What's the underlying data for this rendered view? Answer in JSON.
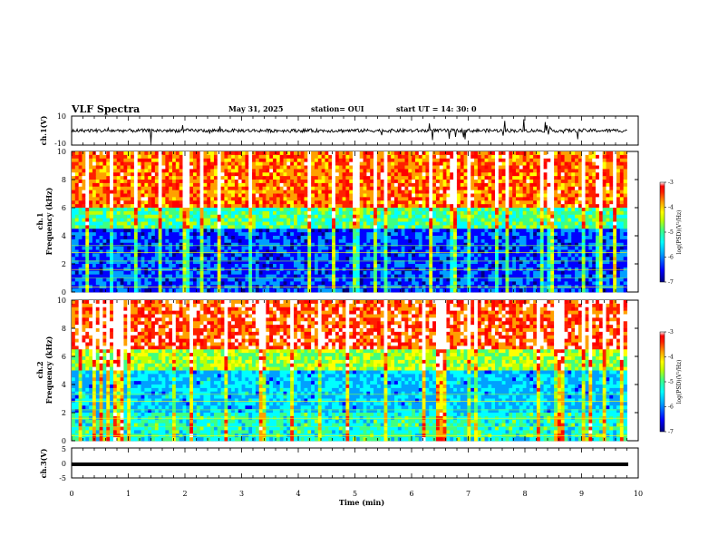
{
  "header": {
    "title": "VLF Spectra",
    "date": "May 31, 2025",
    "station": "station= OUI",
    "start": "start  UT  =   14: 30: 0"
  },
  "colorbar": {
    "label": "log(PSD)(V²/Hz)",
    "ticks": [
      "-3",
      "-4",
      "-5",
      "-6",
      "-7"
    ],
    "values": [
      -3,
      -4,
      -5,
      -6,
      -7
    ],
    "colormap": [
      "#000080",
      "#0000ff",
      "#00a0ff",
      "#00ffff",
      "#40ff80",
      "#c0ff00",
      "#ffff00",
      "#ffa000",
      "#ff2000",
      "#ff0000",
      "#ffffff"
    ]
  },
  "chart_data": [
    {
      "type": "line",
      "panel": "ch1-waveform",
      "ylabel": "ch.1(V)",
      "ylim": [
        -10,
        10
      ],
      "ytick_labels": [
        "10",
        "-10"
      ],
      "xlim": [
        0,
        10
      ],
      "baseline": 0
    },
    {
      "type": "heatmap",
      "panel": "ch1-spectrogram",
      "ylabel": "ch.1\nFrequency (kHz)",
      "ylim": [
        0,
        10
      ],
      "yticks": [
        0,
        2,
        4,
        6,
        8,
        10
      ],
      "xlim": [
        0,
        10
      ],
      "data_extent_min": 9.8,
      "zrange": [
        -7,
        -3
      ],
      "band_levels_kHz": [
        [
          0,
          4.5,
          -6.3
        ],
        [
          4.5,
          6,
          -5.0
        ],
        [
          6,
          10,
          -3.6
        ]
      ]
    },
    {
      "type": "heatmap",
      "panel": "ch2-spectrogram",
      "ylabel": "ch.2\nFrequency (kHz)",
      "ylim": [
        0,
        10
      ],
      "yticks": [
        0,
        2,
        4,
        6,
        8,
        10
      ],
      "xlim": [
        0,
        10
      ],
      "data_extent_min": 9.8,
      "zrange": [
        -7,
        -3
      ],
      "band_levels_kHz": [
        [
          0,
          2,
          -5.2
        ],
        [
          2,
          5,
          -5.7
        ],
        [
          5,
          6.5,
          -4.6
        ],
        [
          6.5,
          10,
          -3.4
        ]
      ]
    },
    {
      "type": "line",
      "panel": "ch3-waveform",
      "ylabel": "ch.3(V)",
      "ylim": [
        -5,
        5
      ],
      "ytick_labels": [
        "5",
        "0",
        "-5"
      ],
      "xlim": [
        0,
        10
      ],
      "xticks": [
        0,
        1,
        2,
        3,
        4,
        5,
        6,
        7,
        8,
        9,
        10
      ],
      "xlabel": "Time (min)",
      "baseline": 0
    }
  ],
  "xtick_labels": [
    "0",
    "1",
    "2",
    "3",
    "4",
    "5",
    "6",
    "7",
    "8",
    "9",
    "10"
  ],
  "ch1_yticks": [
    "0",
    "2",
    "4",
    "6",
    "8",
    "10"
  ],
  "ch2_yticks": [
    "0",
    "2",
    "4",
    "6",
    "8",
    "10"
  ]
}
